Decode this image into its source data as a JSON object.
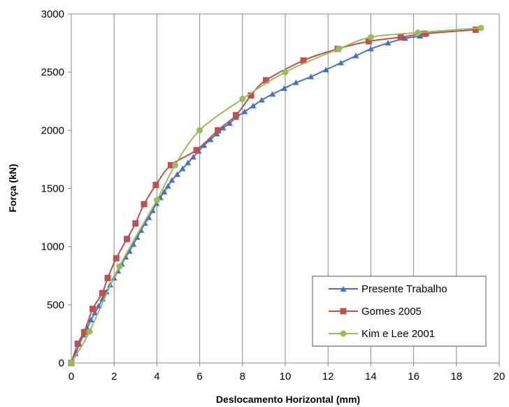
{
  "chart_data": {
    "type": "line",
    "title": "",
    "xlabel": "Deslocamento Horizontal (mm)",
    "ylabel": "Força (kN)",
    "xlim": [
      0,
      20
    ],
    "ylim": [
      0,
      3000
    ],
    "xticks": [
      0,
      2,
      4,
      6,
      8,
      10,
      12,
      14,
      16,
      18,
      20
    ],
    "yticks": [
      0,
      500,
      1000,
      1500,
      2000,
      2500,
      3000
    ],
    "grid": "vertical",
    "legend_position": "bottom-right",
    "series": [
      {
        "name": "Presente Trabalho",
        "color": "#4472C4",
        "marker": "triangle",
        "x": [
          0,
          0.2,
          0.38,
          0.56,
          0.74,
          0.92,
          1.1,
          1.28,
          1.46,
          1.64,
          1.82,
          2.0,
          2.18,
          2.36,
          2.54,
          2.72,
          2.9,
          3.08,
          3.26,
          3.44,
          3.62,
          3.8,
          3.98,
          4.16,
          4.34,
          4.52,
          4.7,
          4.95,
          5.2,
          5.45,
          5.7,
          5.95,
          6.2,
          6.5,
          6.8,
          7.1,
          7.4,
          7.7,
          8.1,
          8.5,
          8.9,
          9.4,
          9.95,
          10.5,
          11.2,
          11.9,
          12.6,
          13.3,
          14.0,
          14.8,
          15.6,
          16.3,
          16.6
        ],
        "y": [
          0,
          80,
          160,
          240,
          300,
          370,
          430,
          490,
          550,
          610,
          670,
          730,
          790,
          850,
          910,
          960,
          1020,
          1080,
          1140,
          1200,
          1250,
          1310,
          1370,
          1420,
          1470,
          1520,
          1570,
          1620,
          1670,
          1720,
          1770,
          1820,
          1870,
          1920,
          1970,
          2020,
          2060,
          2110,
          2160,
          2210,
          2260,
          2310,
          2360,
          2410,
          2460,
          2520,
          2580,
          2640,
          2700,
          2750,
          2790,
          2810,
          2830
        ]
      },
      {
        "name": "Gomes 2005",
        "color": "#C0504D",
        "marker": "square",
        "x": [
          0,
          0.3,
          0.6,
          1.0,
          1.45,
          1.7,
          2.1,
          2.6,
          3.0,
          3.4,
          3.95,
          4.65,
          5.85,
          6.85,
          7.7,
          8.4,
          9.1,
          10.85,
          12.45,
          13.9,
          15.4,
          16.5,
          18.9
        ],
        "y": [
          0,
          165,
          265,
          465,
          600,
          730,
          900,
          1065,
          1200,
          1365,
          1530,
          1700,
          1830,
          2000,
          2130,
          2300,
          2430,
          2600,
          2700,
          2765,
          2800,
          2830,
          2865
        ]
      },
      {
        "name": "Kim e Lee 2001",
        "color": "#9BBB59",
        "marker": "circle",
        "x": [
          0,
          0.85,
          2.25,
          4.0,
          4.85,
          6.0,
          8.0,
          10.0,
          12.5,
          14.0,
          16.2,
          19.15
        ],
        "y": [
          0,
          270,
          830,
          1400,
          1700,
          2000,
          2270,
          2500,
          2700,
          2800,
          2840,
          2880
        ]
      }
    ]
  }
}
